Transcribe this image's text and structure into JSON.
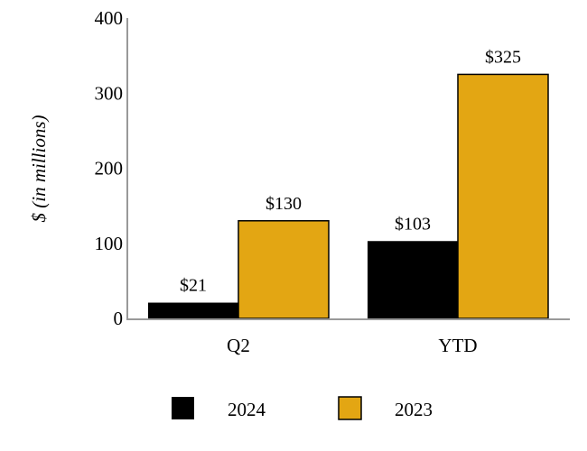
{
  "chart_data": {
    "type": "bar",
    "title": "",
    "xlabel": "",
    "ylabel": "$ (in millions)",
    "ylim": [
      0,
      400
    ],
    "yticks": [
      0,
      100,
      200,
      300,
      400
    ],
    "categories": [
      "Q2",
      "YTD"
    ],
    "series": [
      {
        "name": "2024",
        "values": [
          21,
          103
        ],
        "labels": [
          "$21",
          "$103"
        ],
        "color": "#000000"
      },
      {
        "name": "2023",
        "values": [
          130,
          325
        ],
        "labels": [
          "$130",
          "$325"
        ],
        "color": "#E3A613"
      }
    ],
    "legend": "bottom",
    "grid": false
  }
}
